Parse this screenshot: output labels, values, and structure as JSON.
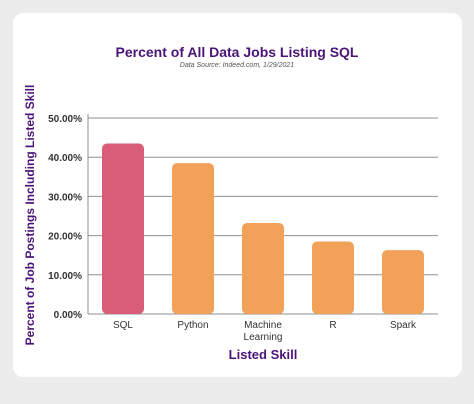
{
  "chart_data": {
    "type": "bar",
    "title": "Percent of All Data Jobs Listing SQL",
    "subtitle": "Data Source: Indeed.com, 1/29/2021",
    "xlabel": "Listed Skill",
    "ylabel": "Percent of Job Postings Including Listed Skill",
    "categories": [
      "SQL",
      "Python",
      "Machine Learning",
      "R",
      "Spark"
    ],
    "category_label_lines": [
      [
        "SQL"
      ],
      [
        "Python"
      ],
      [
        "Machine",
        "Learning"
      ],
      [
        "R"
      ],
      [
        "Spark"
      ]
    ],
    "values": [
      43.5,
      38.5,
      23.2,
      18.5,
      16.3
    ],
    "bar_colors": [
      "#d95c78",
      "#f2a159",
      "#f2a159",
      "#f2a159",
      "#f2a159"
    ],
    "ylim": [
      0,
      50
    ],
    "yticks": [
      0,
      10,
      20,
      30,
      40,
      50
    ],
    "ytick_labels": [
      "0.00%",
      "10.00%",
      "20.00%",
      "30.00%",
      "40.00%",
      "50.00%"
    ],
    "grid": true
  }
}
